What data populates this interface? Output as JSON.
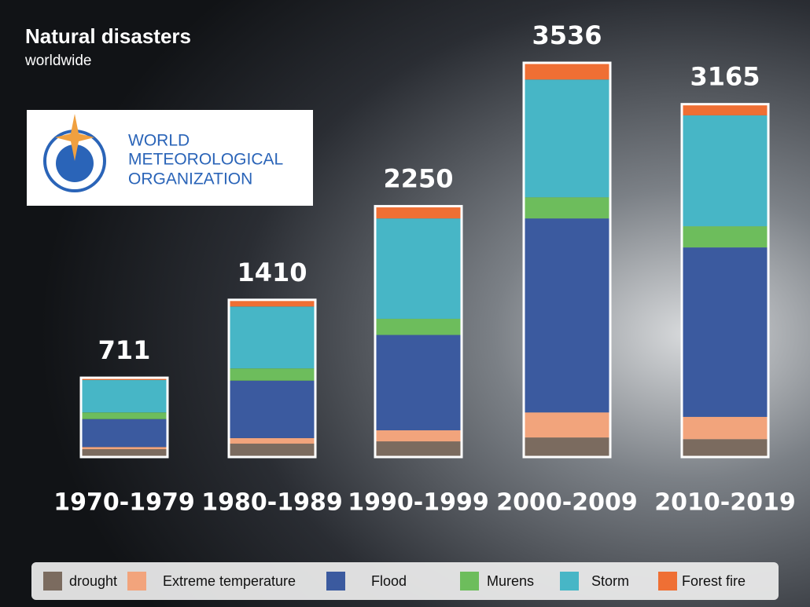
{
  "chart_data": {
    "type": "stacked-bar",
    "title": "Natural disasters",
    "subtitle": "worldwide",
    "categories": [
      "1970-1979",
      "1980-1989",
      "1990-1999",
      "2000-2009",
      "2010-2019"
    ],
    "series": [
      {
        "name": "drought",
        "color": "#7b6b5f",
        "values": [
          70,
          120,
          140,
          175,
          160
        ]
      },
      {
        "name": "Extreme temperature",
        "color": "#f2a47c",
        "values": [
          20,
          50,
          100,
          225,
          200
        ]
      },
      {
        "name": "Flood",
        "color": "#3b5a9f",
        "values": [
          250,
          515,
          855,
          1740,
          1520
        ]
      },
      {
        "name": "Murens",
        "color": "#6dbd5c",
        "values": [
          60,
          110,
          145,
          190,
          190
        ]
      },
      {
        "name": "Storm",
        "color": "#47b6c6",
        "values": [
          291,
          555,
          900,
          1056,
          995
        ]
      },
      {
        "name": "Forest fire",
        "color": "#ef6f34",
        "values": [
          20,
          60,
          110,
          150,
          100
        ]
      }
    ],
    "totals": [
      711,
      1410,
      2250,
      3536,
      3165
    ]
  },
  "logo": {
    "lines": [
      "WORLD",
      "METEOROLOGICAL",
      "ORGANIZATION"
    ]
  }
}
